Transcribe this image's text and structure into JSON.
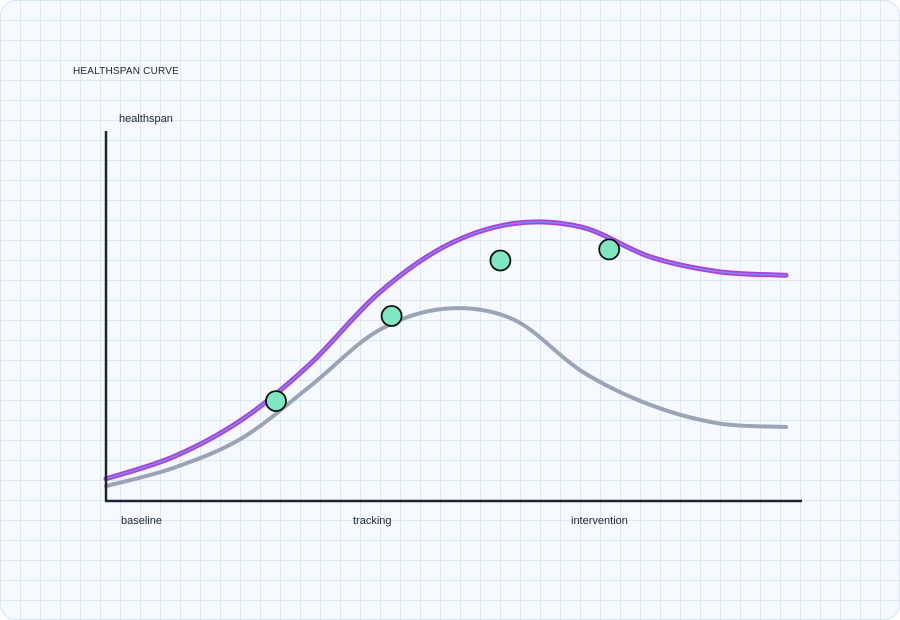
{
  "chart_data": {
    "type": "line",
    "title": "HEALTHSPAN CURVE",
    "ylabel": "healthspan",
    "xlabel": "",
    "x_ticks": [
      "baseline",
      "tracking",
      "intervention"
    ],
    "x": [
      0,
      0.1,
      0.2,
      0.3,
      0.4,
      0.5,
      0.6,
      0.7,
      0.8,
      0.9,
      1.0
    ],
    "series": [
      {
        "values": [
          0.04,
          0.09,
          0.17,
          0.31,
          0.46,
          0.52,
          0.49,
          0.35,
          0.26,
          0.21,
          0.2
        ],
        "color": "#9aa4b6"
      },
      {
        "values": [
          0.06,
          0.12,
          0.22,
          0.37,
          0.56,
          0.69,
          0.75,
          0.74,
          0.66,
          0.62,
          0.61
        ],
        "color": "#b13ed6",
        "markers": [
          {
            "x": 0.25,
            "y": 0.27
          },
          {
            "x": 0.42,
            "y": 0.5
          },
          {
            "x": 0.58,
            "y": 0.65
          },
          {
            "x": 0.74,
            "y": 0.68
          }
        ],
        "marker_color": "#7ee6c1"
      }
    ],
    "ylim": [
      0,
      1
    ],
    "xlim": [
      0,
      1
    ],
    "grid": false,
    "legend": "none"
  }
}
